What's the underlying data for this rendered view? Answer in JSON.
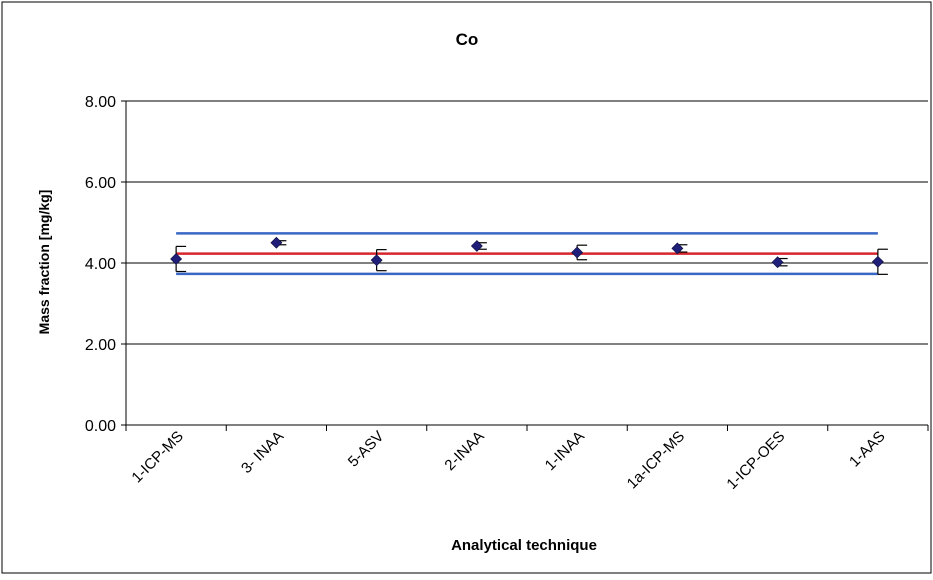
{
  "chart_data": {
    "type": "scatter",
    "title": "Co",
    "xlabel": "Analytical technique",
    "ylabel": "Mass fraction [mg/kg]",
    "ylim": [
      0,
      8
    ],
    "yticks": [
      "0.00",
      "2.00",
      "4.00",
      "6.00",
      "8.00"
    ],
    "grid": true,
    "legend": "none",
    "categories": [
      "1-ICP-MS",
      "3- INAA",
      "5-ASV",
      "2-INAA",
      "1-INAA",
      "1a-ICP-MS",
      "1-ICP-OES",
      "1-AAS"
    ],
    "values": [
      4.1,
      4.5,
      4.07,
      4.42,
      4.26,
      4.36,
      4.02,
      4.03
    ],
    "error": [
      0.31,
      0.05,
      0.26,
      0.08,
      0.18,
      0.09,
      0.09,
      0.31
    ],
    "reference_lines": {
      "mean": 4.23,
      "upper": 4.73,
      "lower": 3.73
    },
    "colors": {
      "marker": "#1f1f7a",
      "mean_line": "#d6262b",
      "limit_lines": "#3a66c4",
      "grid": "#000000"
    }
  }
}
